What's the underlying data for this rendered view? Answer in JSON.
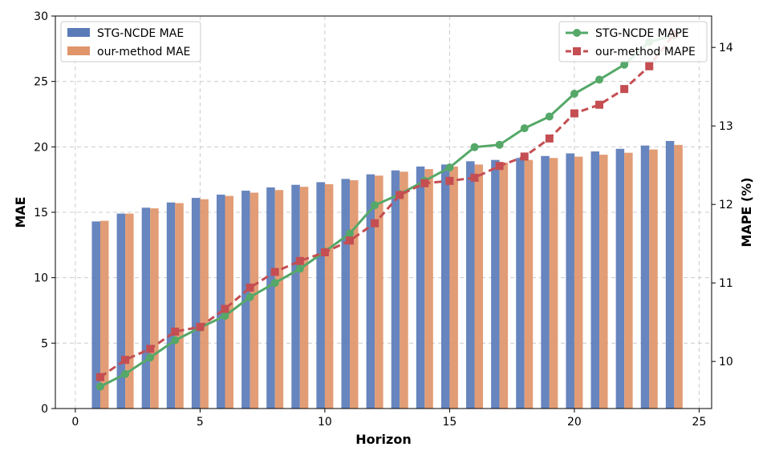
{
  "chart_data": {
    "type": "bar",
    "xlabel": "Horizon",
    "ylabel": "MAE",
    "y2label": "MAPE (%)",
    "xlim": [
      -0.8,
      25.5
    ],
    "ylim": [
      0,
      30
    ],
    "y2lim": [
      9.4,
      14.4
    ],
    "xticks": [
      0,
      5,
      10,
      15,
      20,
      25
    ],
    "yticks": [
      0,
      5,
      10,
      15,
      20,
      25,
      30
    ],
    "y2ticks": [
      10,
      11,
      12,
      13,
      14
    ],
    "grid": true,
    "x": [
      1,
      2,
      3,
      4,
      5,
      6,
      7,
      8,
      9,
      10,
      11,
      12,
      13,
      14,
      15,
      16,
      17,
      18,
      19,
      20,
      21,
      22,
      23,
      24
    ],
    "bar_series": [
      {
        "name": "STG-NCDE MAE",
        "color": "#5a7bb8",
        "values": [
          14.3,
          14.9,
          15.35,
          15.75,
          16.1,
          16.35,
          16.65,
          16.9,
          17.1,
          17.3,
          17.55,
          17.9,
          18.2,
          18.5,
          18.65,
          18.9,
          19.0,
          19.15,
          19.3,
          19.5,
          19.65,
          19.85,
          20.1,
          20.45
        ]
      },
      {
        "name": "our-method MAE",
        "color": "#e0956a",
        "values": [
          14.35,
          14.9,
          15.3,
          15.7,
          16.0,
          16.25,
          16.5,
          16.7,
          16.95,
          17.15,
          17.45,
          17.8,
          18.1,
          18.3,
          18.5,
          18.65,
          18.8,
          19.0,
          19.15,
          19.25,
          19.4,
          19.55,
          19.8,
          20.15
        ]
      }
    ],
    "line_series": [
      {
        "name": "STG-NCDE MAPE",
        "color": "#55a868",
        "marker": "circle",
        "values": [
          9.68,
          9.84,
          10.05,
          10.27,
          10.43,
          10.58,
          10.82,
          11.0,
          11.18,
          11.4,
          11.63,
          11.99,
          12.13,
          12.3,
          12.47,
          12.73,
          12.76,
          12.97,
          13.12,
          13.41,
          13.59,
          13.78,
          14.07,
          14.15
        ]
      },
      {
        "name": "our-method MAPE",
        "color": "#c44e52",
        "marker": "square",
        "values": [
          9.8,
          10.02,
          10.16,
          10.38,
          10.44,
          10.67,
          10.94,
          11.14,
          11.28,
          11.39,
          11.54,
          11.76,
          12.12,
          12.27,
          12.3,
          12.34,
          12.49,
          12.61,
          12.84,
          13.16,
          13.27,
          13.47,
          13.76,
          14.17
        ]
      }
    ],
    "legend_left": {
      "placement": "top-left",
      "items": [
        "STG-NCDE MAE",
        "our-method MAE"
      ]
    },
    "legend_right": {
      "placement": "top-right",
      "items": [
        "STG-NCDE MAPE",
        "our-method MAPE"
      ]
    }
  }
}
